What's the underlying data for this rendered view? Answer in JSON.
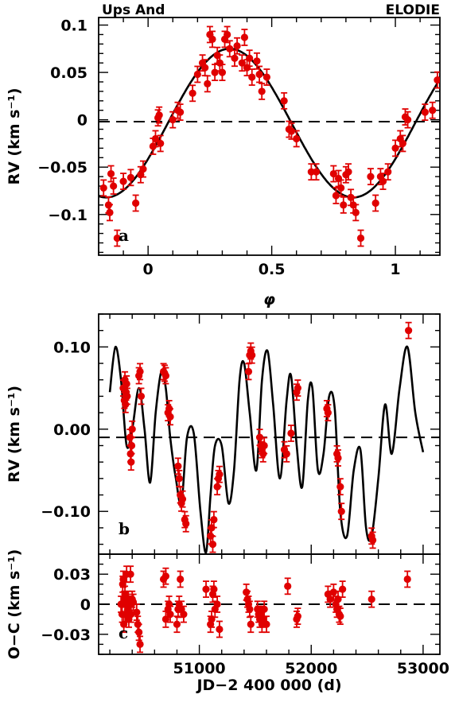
{
  "header": {
    "left_title": "Ups And",
    "right_title": "ELODIE"
  },
  "colors": {
    "points": "#e00000",
    "model": "#000000",
    "axes": "#000000"
  },
  "chart_data": [
    {
      "id": "a",
      "type": "scatter",
      "panel_label": "a",
      "xlabel": "φ",
      "ylabel": "RV  (km s⁻¹)",
      "xlim": [
        -0.2,
        1.18
      ],
      "ylim": [
        -0.143,
        0.108
      ],
      "xticks": [
        {
          "v": 0,
          "label": "0"
        },
        {
          "v": 0.5,
          "label": "0.5"
        },
        {
          "v": 1,
          "label": "1"
        }
      ],
      "yticks": [
        {
          "v": 0.1,
          "label": "0.1"
        },
        {
          "v": 0.05,
          "label": "0.05"
        },
        {
          "v": 0,
          "label": "0"
        },
        {
          "v": -0.05,
          "label": "−0.05"
        },
        {
          "v": -0.1,
          "label": "−0.1"
        }
      ],
      "zero_line": -0.002,
      "model": {
        "kind": "sine",
        "offset": -0.0035,
        "amplitude": 0.0785,
        "phase_max": 0.33
      },
      "points": [
        [
          -0.18,
          -0.072
        ],
        [
          -0.16,
          -0.09
        ],
        [
          -0.155,
          -0.098
        ],
        [
          -0.15,
          -0.057
        ],
        [
          -0.14,
          -0.07
        ],
        [
          -0.125,
          -0.125
        ],
        [
          -0.1,
          -0.065
        ],
        [
          -0.07,
          -0.061
        ],
        [
          -0.05,
          -0.088
        ],
        [
          -0.03,
          -0.058
        ],
        [
          -0.02,
          -0.052
        ],
        [
          0.02,
          -0.028
        ],
        [
          0.03,
          -0.02
        ],
        [
          0.04,
          0.002
        ],
        [
          0.045,
          0.005
        ],
        [
          0.05,
          -0.025
        ],
        [
          0.1,
          0.0
        ],
        [
          0.12,
          0.01
        ],
        [
          0.13,
          0.008
        ],
        [
          0.18,
          0.028
        ],
        [
          0.2,
          0.048
        ],
        [
          0.22,
          0.06
        ],
        [
          0.23,
          0.055
        ],
        [
          0.24,
          0.038
        ],
        [
          0.25,
          0.09
        ],
        [
          0.26,
          0.085
        ],
        [
          0.27,
          0.05
        ],
        [
          0.28,
          0.068
        ],
        [
          0.29,
          0.06
        ],
        [
          0.3,
          0.05
        ],
        [
          0.31,
          0.085
        ],
        [
          0.32,
          0.09
        ],
        [
          0.33,
          0.075
        ],
        [
          0.35,
          0.065
        ],
        [
          0.36,
          0.078
        ],
        [
          0.38,
          0.06
        ],
        [
          0.39,
          0.087
        ],
        [
          0.4,
          0.055
        ],
        [
          0.41,
          0.065
        ],
        [
          0.42,
          0.045
        ],
        [
          0.44,
          0.062
        ],
        [
          0.45,
          0.048
        ],
        [
          0.46,
          0.03
        ],
        [
          0.48,
          0.045
        ],
        [
          0.55,
          0.02
        ],
        [
          0.57,
          -0.01
        ],
        [
          0.58,
          -0.012
        ],
        [
          0.6,
          -0.02
        ],
        [
          0.66,
          -0.055
        ],
        [
          0.68,
          -0.055
        ],
        [
          0.75,
          -0.057
        ],
        [
          0.76,
          -0.08
        ],
        [
          0.77,
          -0.062
        ],
        [
          0.78,
          -0.072
        ],
        [
          0.79,
          -0.09
        ],
        [
          0.8,
          -0.058
        ],
        [
          0.81,
          -0.055
        ],
        [
          0.82,
          -0.082
        ],
        [
          0.83,
          -0.09
        ],
        [
          0.84,
          -0.098
        ],
        [
          0.86,
          -0.125
        ],
        [
          0.9,
          -0.06
        ],
        [
          0.92,
          -0.088
        ],
        [
          0.94,
          -0.06
        ],
        [
          0.95,
          -0.065
        ],
        [
          0.97,
          -0.055
        ],
        [
          1.0,
          -0.03
        ],
        [
          1.02,
          -0.02
        ],
        [
          1.03,
          -0.025
        ],
        [
          1.04,
          0.003
        ],
        [
          1.05,
          0.0
        ],
        [
          1.12,
          0.008
        ],
        [
          1.15,
          0.01
        ],
        [
          1.17,
          0.042
        ]
      ]
    },
    {
      "id": "b",
      "type": "scatter",
      "panel_label": "b",
      "xlabel": "",
      "ylabel": "RV  (km s⁻¹)",
      "xlim": [
        50100,
        53150
      ],
      "ylim": [
        -0.152,
        0.14
      ],
      "xticks": [
        {
          "v": 51000,
          "label": ""
        },
        {
          "v": 52000,
          "label": ""
        },
        {
          "v": 53000,
          "label": ""
        }
      ],
      "yticks": [
        {
          "v": 0.1,
          "label": "0.10"
        },
        {
          "v": 0.0,
          "label": "0.00"
        },
        {
          "v": -0.1,
          "label": "−0.10"
        }
      ],
      "zero_line": -0.01,
      "model": {
        "kind": "polyline",
        "x": [
          50200,
          50250,
          50300,
          50350,
          50400,
          50460,
          50510,
          50560,
          50610,
          50660,
          50700,
          50740,
          50790,
          50840,
          50890,
          50950,
          51010,
          51060,
          51100,
          51140,
          51200,
          51260,
          51310,
          51360,
          51400,
          51450,
          51510,
          51560,
          51610,
          51660,
          51720,
          51780,
          51820,
          51870,
          51920,
          51970,
          52010,
          52060,
          52110,
          52160,
          52210,
          52260,
          52320,
          52380,
          52440,
          52490,
          52540,
          52600,
          52660,
          52720,
          52790,
          52860,
          52930,
          53000
        ],
        "y": [
          0.045,
          0.1,
          0.06,
          -0.02,
          0.0,
          0.05,
          0.0,
          -0.065,
          0.02,
          0.07,
          0.05,
          -0.01,
          -0.06,
          -0.09,
          -0.01,
          -0.005,
          -0.1,
          -0.15,
          -0.08,
          -0.02,
          -0.02,
          -0.09,
          -0.05,
          0.06,
          0.08,
          0.02,
          -0.05,
          0.06,
          0.095,
          0.03,
          -0.06,
          0.035,
          0.065,
          -0.02,
          -0.07,
          0.035,
          0.05,
          -0.05,
          -0.03,
          0.04,
          0.025,
          -0.1,
          -0.13,
          -0.05,
          -0.025,
          -0.12,
          -0.13,
          -0.06,
          0.03,
          -0.03,
          0.05,
          0.1,
          0.02,
          -0.028
        ]
      },
      "points": [
        [
          50320,
          0.05
        ],
        [
          50330,
          0.035
        ],
        [
          50335,
          0.06
        ],
        [
          50340,
          0.03
        ],
        [
          50345,
          0.045
        ],
        [
          50350,
          0.055
        ],
        [
          50355,
          0.04
        ],
        [
          50380,
          -0.01
        ],
        [
          50385,
          -0.03
        ],
        [
          50390,
          -0.04
        ],
        [
          50395,
          -0.02
        ],
        [
          50400,
          0.0
        ],
        [
          50460,
          0.065
        ],
        [
          50470,
          0.07
        ],
        [
          50480,
          0.04
        ],
        [
          50680,
          0.07
        ],
        [
          50690,
          0.068
        ],
        [
          50700,
          0.065
        ],
        [
          50720,
          0.02
        ],
        [
          50730,
          0.025
        ],
        [
          50740,
          0.015
        ],
        [
          50810,
          -0.045
        ],
        [
          50820,
          -0.06
        ],
        [
          50830,
          -0.08
        ],
        [
          50840,
          -0.09
        ],
        [
          50850,
          -0.085
        ],
        [
          50870,
          -0.11
        ],
        [
          50880,
          -0.115
        ],
        [
          51100,
          -0.13
        ],
        [
          51110,
          -0.12
        ],
        [
          51120,
          -0.14
        ],
        [
          51130,
          -0.11
        ],
        [
          51160,
          -0.07
        ],
        [
          51170,
          -0.06
        ],
        [
          51180,
          -0.055
        ],
        [
          51440,
          0.07
        ],
        [
          51450,
          0.09
        ],
        [
          51460,
          0.095
        ],
        [
          51470,
          0.09
        ],
        [
          51540,
          -0.01
        ],
        [
          51550,
          -0.02
        ],
        [
          51560,
          -0.025
        ],
        [
          51570,
          -0.03
        ],
        [
          51580,
          -0.02
        ],
        [
          51760,
          -0.025
        ],
        [
          51780,
          -0.03
        ],
        [
          51820,
          -0.005
        ],
        [
          51870,
          0.045
        ],
        [
          51880,
          0.05
        ],
        [
          52140,
          0.025
        ],
        [
          52150,
          0.02
        ],
        [
          52230,
          -0.03
        ],
        [
          52240,
          -0.035
        ],
        [
          52260,
          -0.07
        ],
        [
          52270,
          -0.1
        ],
        [
          52540,
          -0.13
        ],
        [
          52550,
          -0.135
        ],
        [
          52870,
          0.12
        ]
      ]
    },
    {
      "id": "c",
      "type": "scatter",
      "panel_label": "c",
      "xlabel": "JD−2 400 000  (d)",
      "ylabel": "O−C  (km s⁻¹)",
      "xlim": [
        50100,
        53150
      ],
      "ylim": [
        -0.05,
        0.05
      ],
      "xticks": [
        {
          "v": 51000,
          "label": "51000"
        },
        {
          "v": 52000,
          "label": "52000"
        },
        {
          "v": 53000,
          "label": "53000"
        }
      ],
      "yticks": [
        {
          "v": 0.03,
          "label": "0.03"
        },
        {
          "v": 0,
          "label": "0"
        },
        {
          "v": -0.03,
          "label": "−0.03"
        }
      ],
      "zero_line": 0,
      "points": [
        [
          50300,
          0.0
        ],
        [
          50310,
          -0.01
        ],
        [
          50315,
          0.02
        ],
        [
          50320,
          0.025
        ],
        [
          50325,
          -0.02
        ],
        [
          50330,
          0.005
        ],
        [
          50335,
          0.01
        ],
        [
          50340,
          -0.01
        ],
        [
          50345,
          0.0
        ],
        [
          50350,
          0.03
        ],
        [
          50355,
          0.002
        ],
        [
          50360,
          -0.005
        ],
        [
          50365,
          0.005
        ],
        [
          50370,
          -0.015
        ],
        [
          50380,
          0.0
        ],
        [
          50385,
          0.03
        ],
        [
          50390,
          -0.01
        ],
        [
          50400,
          0.005
        ],
        [
          50410,
          0.002
        ],
        [
          50440,
          -0.008
        ],
        [
          50450,
          -0.02
        ],
        [
          50460,
          -0.028
        ],
        [
          50470,
          -0.04
        ],
        [
          50680,
          0.025
        ],
        [
          50700,
          0.028
        ],
        [
          50700,
          -0.015
        ],
        [
          50720,
          -0.005
        ],
        [
          50730,
          0.0
        ],
        [
          50740,
          -0.01
        ],
        [
          50800,
          -0.02
        ],
        [
          50810,
          -0.005
        ],
        [
          50820,
          0.0
        ],
        [
          50830,
          0.025
        ],
        [
          50840,
          -0.005
        ],
        [
          50860,
          -0.01
        ],
        [
          51060,
          0.015
        ],
        [
          51100,
          -0.02
        ],
        [
          51110,
          -0.015
        ],
        [
          51120,
          0.01
        ],
        [
          51130,
          0.015
        ],
        [
          51140,
          -0.005
        ],
        [
          51160,
          0.0
        ],
        [
          51180,
          -0.025
        ],
        [
          51420,
          0.012
        ],
        [
          51430,
          0.005
        ],
        [
          51440,
          0.0
        ],
        [
          51450,
          -0.005
        ],
        [
          51460,
          -0.02
        ],
        [
          51520,
          -0.005
        ],
        [
          51530,
          -0.01
        ],
        [
          51540,
          -0.015
        ],
        [
          51550,
          -0.01
        ],
        [
          51560,
          -0.02
        ],
        [
          51570,
          -0.015
        ],
        [
          51580,
          -0.005
        ],
        [
          51600,
          -0.02
        ],
        [
          51790,
          0.018
        ],
        [
          51870,
          -0.015
        ],
        [
          51880,
          -0.012
        ],
        [
          52150,
          0.01
        ],
        [
          52170,
          0.005
        ],
        [
          52200,
          0.012
        ],
        [
          52220,
          0.0
        ],
        [
          52230,
          -0.005
        ],
        [
          52240,
          0.005
        ],
        [
          52250,
          -0.01
        ],
        [
          52260,
          -0.012
        ],
        [
          52280,
          0.015
        ],
        [
          52540,
          0.005
        ],
        [
          52860,
          0.025
        ]
      ]
    }
  ]
}
